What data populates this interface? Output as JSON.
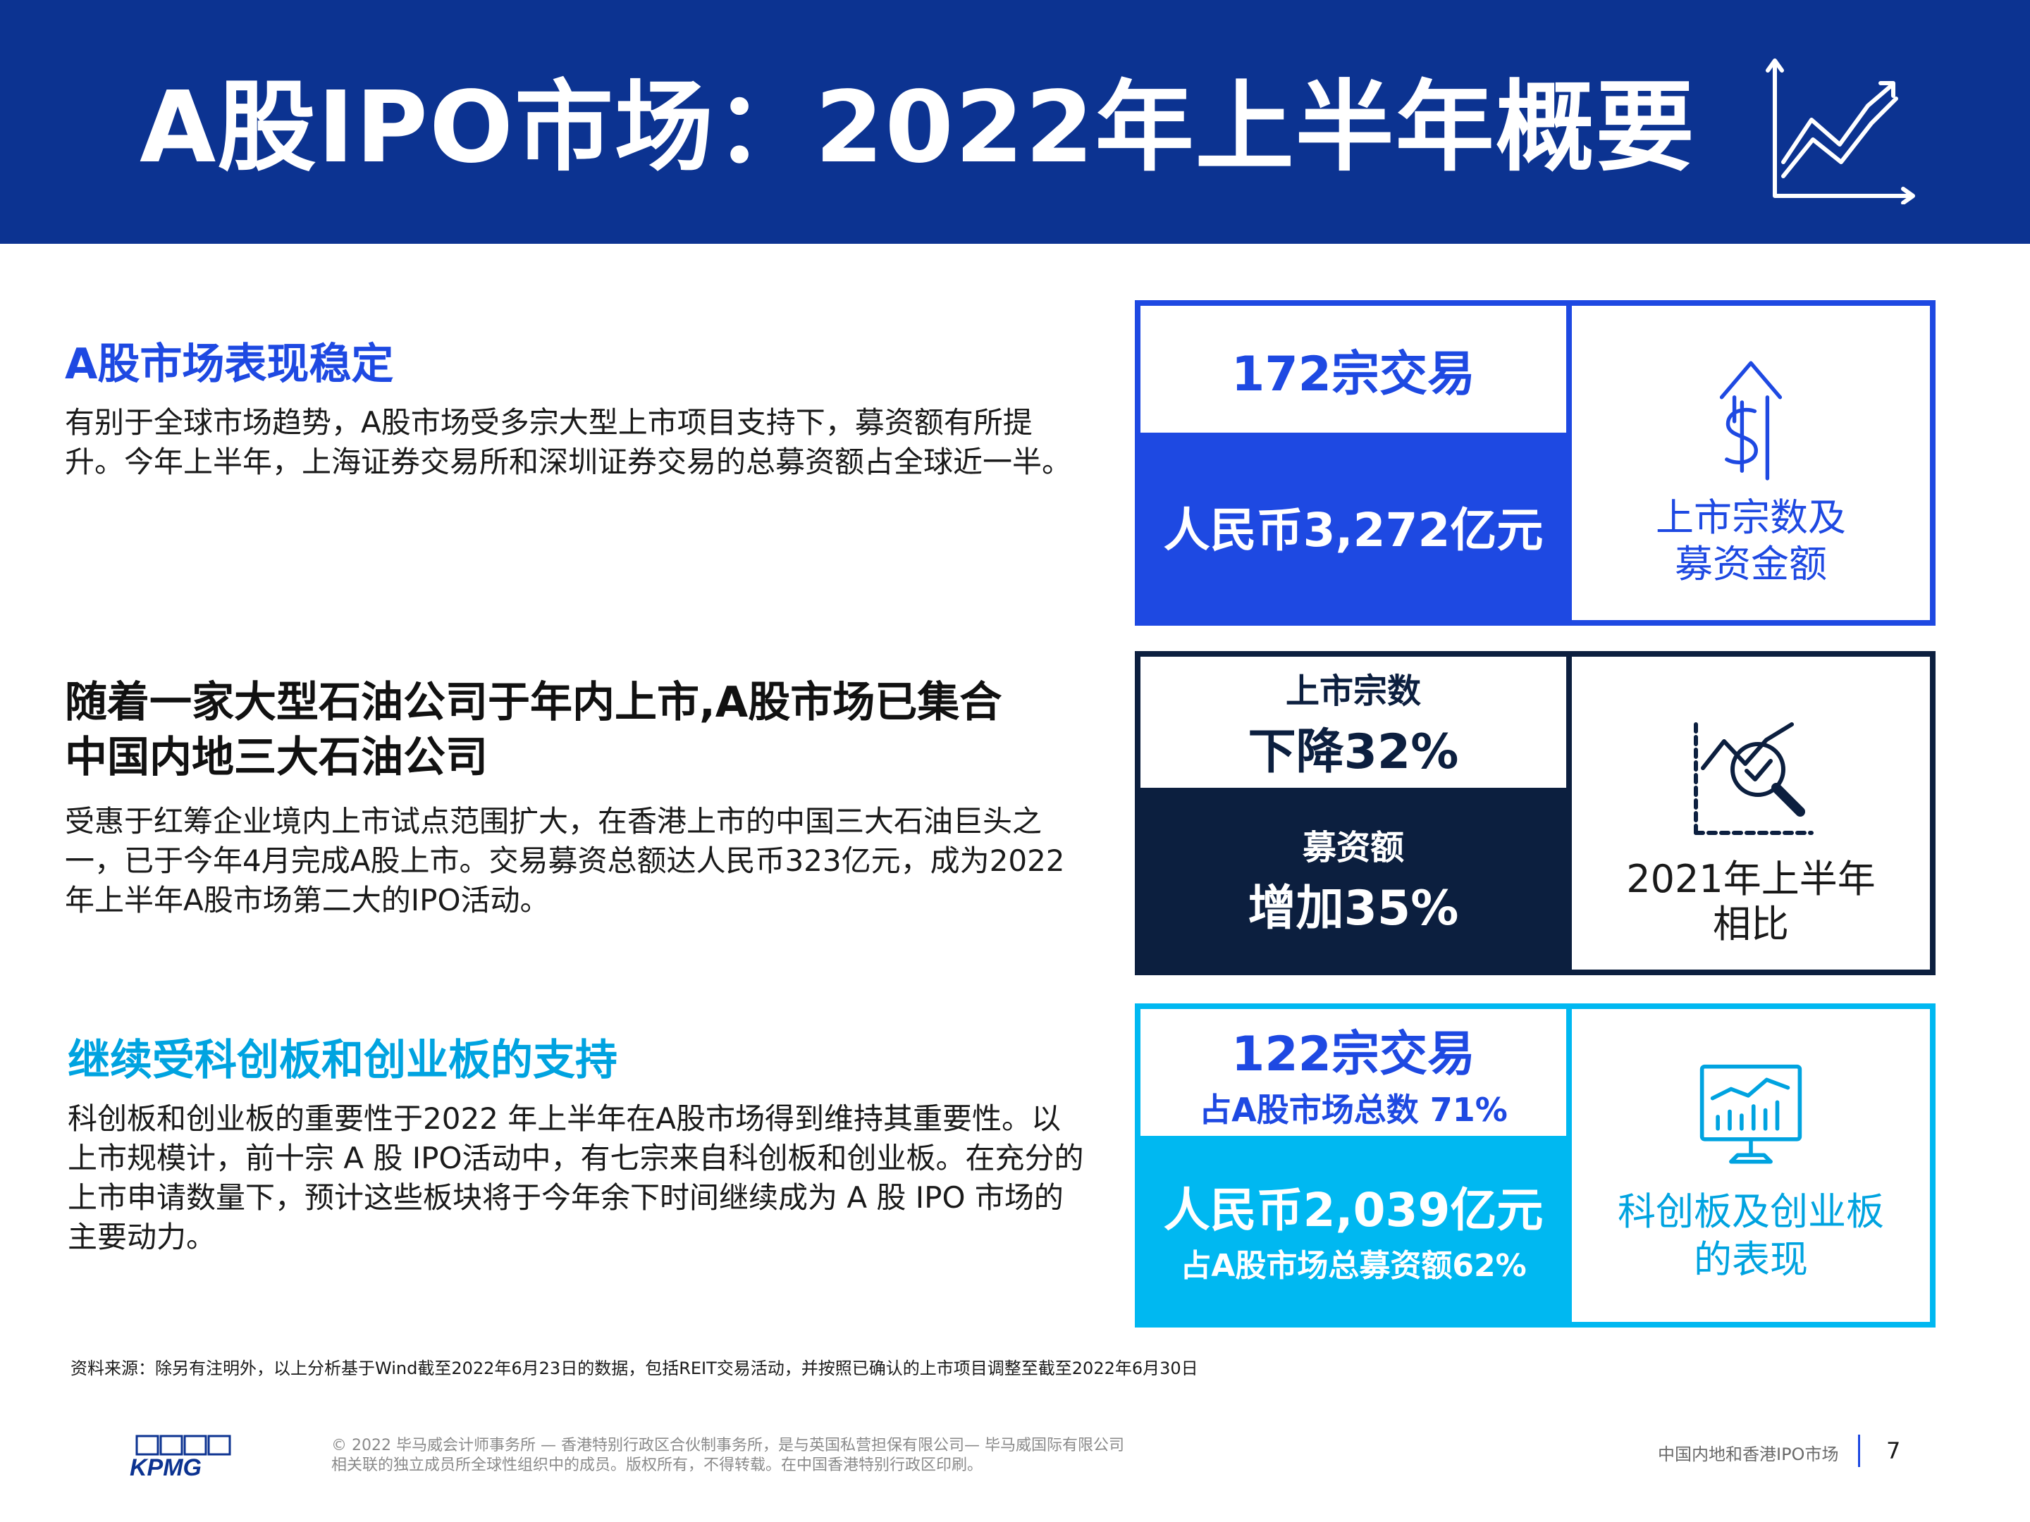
{
  "header": {
    "title": "A股IPO市场：2022年上半年概要",
    "icon": "line-chart-icon",
    "bg_color": "#0c3391"
  },
  "sections": [
    {
      "heading": "A股市场表现稳定",
      "heading_color": "#1e49e2",
      "body": "有别于全球市场趋势，A股市场受多宗大型上市项目支持下，募资额有所提升。今年上半年，上海证券交易所和深圳证券交易的总募资额占全球近一半。"
    },
    {
      "heading_lines": [
        "随着一家大型石油公司于年内上市,A股市场已集合",
        "中国内地三大石油公司"
      ],
      "heading_color": "#111111",
      "body": "受惠于红筹企业境内上市试点范围扩大，在香港上市的中国三大石油巨头之一，已于今年4月完成A股上市。交易募资总额达人民币323亿元，成为2022年上半年A股市场第二大的IPO活动。"
    },
    {
      "heading": "继续受科创板和创业板的支持",
      "heading_color": "#00a3e0",
      "body": "科创板和创业板的重要性于2022 年上半年在A股市场得到维持其重要性。以上市规模计，前十宗 A 股 IPO活动中，有七宗来自科创板和创业板。在充分的上市申请数量下，预计这些板块将于今年余下时间继续成为 A 股 IPO 市场的主要动力。"
    }
  ],
  "cards": [
    {
      "top_text": "172宗交易",
      "bottom_text": "人民币3,272亿元",
      "right_label_lines": [
        "上市宗数及",
        "募资金额"
      ],
      "icon": "dollar-arrow-up-icon",
      "color": "#1e49e2"
    },
    {
      "top_label": "上市宗数",
      "top_value": "下降32%",
      "bottom_label": "募资额",
      "bottom_value": "增加35%",
      "right_label_lines": [
        "2021年上半年",
        "相比"
      ],
      "icon": "chart-magnifier-icon",
      "color": "#0c1f3f"
    },
    {
      "top_value": "122宗交易",
      "top_sub": "占A股市场总数 71%",
      "bottom_value": "人民币2,039亿元",
      "bottom_sub": "占A股市场总募资额62%",
      "right_label_lines": [
        "科创板及创业板",
        "的表现"
      ],
      "icon": "monitor-chart-icon",
      "color": "#00b8f1"
    }
  ],
  "footnote": "资料来源：除另有注明外，以上分析基于Wind截至2022年6月23日的数据，包括REIT交易活动，并按照已确认的上市项目调整至截至2022年6月30日",
  "footer": {
    "logo_text": "KPMG",
    "copyright_lines": [
      "© 2022 毕马威会计师事务所 — 香港特别行政区合伙制事务所，是与英国私营担保有限公司— 毕马威国际有限公司",
      "相关联的独立成员所全球性组织中的成员。版权所有，不得转载。在中国香港特别行政区印刷。"
    ],
    "report_name": "中国内地和香港IPO市场",
    "page_number": "7"
  }
}
